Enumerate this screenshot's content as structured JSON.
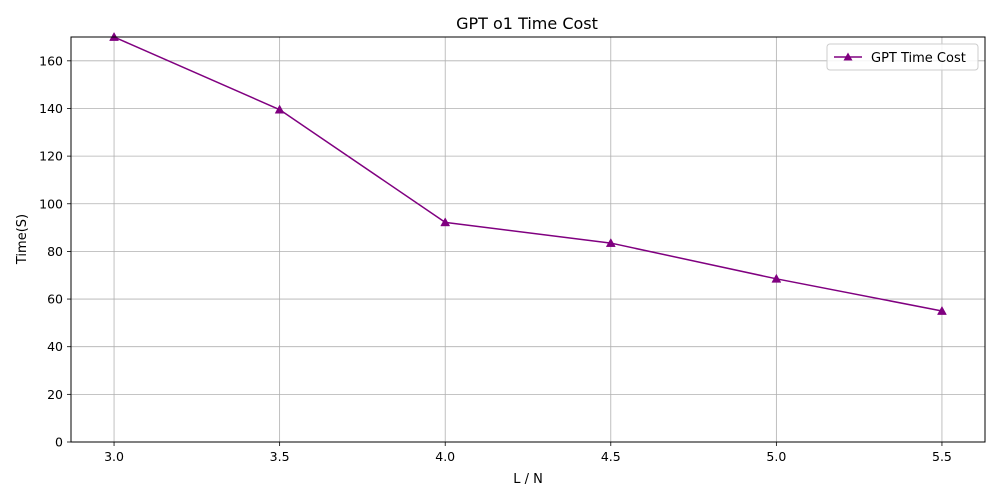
{
  "chart_data": {
    "type": "line",
    "title": "GPT o1 Time Cost",
    "xlabel": "L / N",
    "ylabel": "Time(S)",
    "xlim": [
      2.87,
      5.63
    ],
    "ylim": [
      0,
      170
    ],
    "xticks": [
      3.0,
      3.5,
      4.0,
      4.5,
      5.0,
      5.5
    ],
    "xtick_labels": [
      "3.0",
      "3.5",
      "4.0",
      "4.5",
      "5.0",
      "5.5"
    ],
    "yticks": [
      0,
      20,
      40,
      60,
      80,
      100,
      120,
      140,
      160
    ],
    "ytick_labels": [
      "0",
      "20",
      "40",
      "60",
      "80",
      "100",
      "120",
      "140",
      "160"
    ],
    "grid": true,
    "legend_position": "top-right",
    "series": [
      {
        "name": "GPT Time Cost",
        "color": "#800080",
        "marker": "triangle-up",
        "x": [
          3.0,
          3.5,
          4.0,
          4.5,
          5.0,
          5.5
        ],
        "y": [
          170.0,
          139.5,
          92.2,
          83.5,
          68.5,
          55.0
        ]
      }
    ]
  }
}
